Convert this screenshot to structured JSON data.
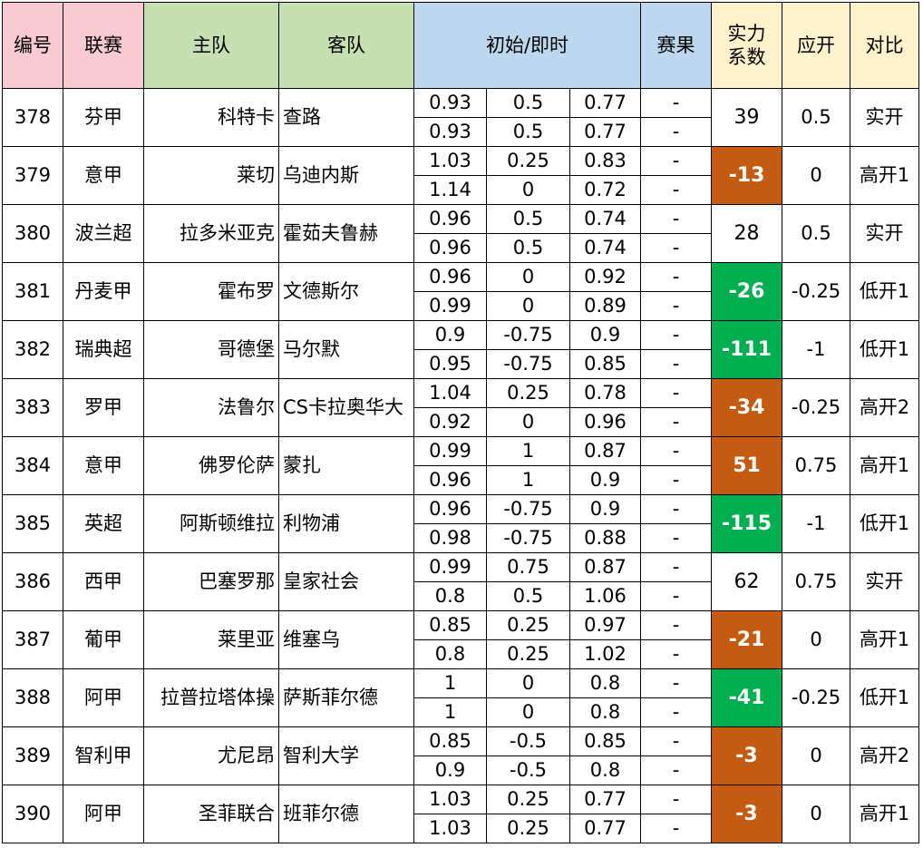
{
  "headers": {
    "id": "编号",
    "league": "联赛",
    "home": "主队",
    "away": "客队",
    "odds": "初始/即时",
    "result": "赛果",
    "power_line1": "实力",
    "power_line2": "系数",
    "expected": "应开",
    "compare": "对比"
  },
  "colors": {
    "header_pink": "#f8cad4",
    "header_green": "#c6e0b4",
    "header_blue": "#bdd7ee",
    "header_yellow": "#fff2cc",
    "highlight_orange": "#c55a11",
    "highlight_green": "#00b050"
  },
  "rows": [
    {
      "id": "378",
      "league": "芬甲",
      "home": "科特卡",
      "away": "查路",
      "initial": [
        "0.93",
        "0.5",
        "0.77"
      ],
      "live": [
        "0.93",
        "0.5",
        "0.77"
      ],
      "result1": "-",
      "result2": "-",
      "coef": "39",
      "coef_style": "none",
      "expected": "0.5",
      "compare": "实开"
    },
    {
      "id": "379",
      "league": "意甲",
      "home": "莱切",
      "away": "乌迪内斯",
      "initial": [
        "1.03",
        "0.25",
        "0.83"
      ],
      "live": [
        "1.14",
        "0",
        "0.72"
      ],
      "result1": "-",
      "result2": "-",
      "coef": "-13",
      "coef_style": "orange",
      "expected": "0",
      "compare": "高开1"
    },
    {
      "id": "380",
      "league": "波兰超",
      "home": "拉多米亚克",
      "away": "霍茹夫鲁赫",
      "initial": [
        "0.96",
        "0.5",
        "0.74"
      ],
      "live": [
        "0.96",
        "0.5",
        "0.74"
      ],
      "result1": "-",
      "result2": "-",
      "coef": "28",
      "coef_style": "none",
      "expected": "0.5",
      "compare": "实开"
    },
    {
      "id": "381",
      "league": "丹麦甲",
      "home": "霍布罗",
      "away": "文德斯尔",
      "initial": [
        "0.96",
        "0",
        "0.92"
      ],
      "live": [
        "0.99",
        "0",
        "0.89"
      ],
      "result1": "-",
      "result2": "-",
      "coef": "-26",
      "coef_style": "green",
      "expected": "-0.25",
      "compare": "低开1"
    },
    {
      "id": "382",
      "league": "瑞典超",
      "home": "哥德堡",
      "away": "马尔默",
      "initial": [
        "0.9",
        "-0.75",
        "0.9"
      ],
      "live": [
        "0.95",
        "-0.75",
        "0.85"
      ],
      "result1": "-",
      "result2": "-",
      "coef": "-111",
      "coef_style": "green",
      "expected": "-1",
      "compare": "低开1"
    },
    {
      "id": "383",
      "league": "罗甲",
      "home": "法鲁尔",
      "away": "CS卡拉奥华大",
      "initial": [
        "1.04",
        "0.25",
        "0.78"
      ],
      "live": [
        "0.92",
        "0",
        "0.96"
      ],
      "result1": "-",
      "result2": "-",
      "coef": "-34",
      "coef_style": "orange",
      "expected": "-0.25",
      "compare": "高开2"
    },
    {
      "id": "384",
      "league": "意甲",
      "home": "佛罗伦萨",
      "away": "蒙扎",
      "initial": [
        "0.99",
        "1",
        "0.87"
      ],
      "live": [
        "0.96",
        "1",
        "0.9"
      ],
      "result1": "-",
      "result2": "-",
      "coef": "51",
      "coef_style": "orange",
      "expected": "0.75",
      "compare": "高开1"
    },
    {
      "id": "385",
      "league": "英超",
      "home": "阿斯顿维拉",
      "away": "利物浦",
      "initial": [
        "0.96",
        "-0.75",
        "0.9"
      ],
      "live": [
        "0.98",
        "-0.75",
        "0.88"
      ],
      "result1": "-",
      "result2": "-",
      "coef": "-115",
      "coef_style": "green",
      "expected": "-1",
      "compare": "低开1"
    },
    {
      "id": "386",
      "league": "西甲",
      "home": "巴塞罗那",
      "away": "皇家社会",
      "initial": [
        "0.99",
        "0.75",
        "0.87"
      ],
      "live": [
        "0.8",
        "0.5",
        "1.06"
      ],
      "result1": "-",
      "result2": "-",
      "coef": "62",
      "coef_style": "none",
      "expected": "0.75",
      "compare": "实开"
    },
    {
      "id": "387",
      "league": "葡甲",
      "home": "莱里亚",
      "away": "维塞乌",
      "initial": [
        "0.85",
        "0.25",
        "0.97"
      ],
      "live": [
        "0.8",
        "0.25",
        "1.02"
      ],
      "result1": "-",
      "result2": "-",
      "coef": "-21",
      "coef_style": "orange",
      "expected": "0",
      "compare": "高开1"
    },
    {
      "id": "388",
      "league": "阿甲",
      "home": "拉普拉塔体操",
      "away": "萨斯菲尔德",
      "initial": [
        "1",
        "0",
        "0.8"
      ],
      "live": [
        "1",
        "0",
        "0.8"
      ],
      "result1": "-",
      "result2": "-",
      "coef": "-41",
      "coef_style": "green",
      "expected": "-0.25",
      "compare": "低开1"
    },
    {
      "id": "389",
      "league": "智利甲",
      "home": "尤尼昂",
      "away": "智利大学",
      "initial": [
        "0.85",
        "-0.5",
        "0.85"
      ],
      "live": [
        "0.9",
        "-0.5",
        "0.8"
      ],
      "result1": "-",
      "result2": "-",
      "coef": "-3",
      "coef_style": "orange",
      "expected": "0",
      "compare": "高开2"
    },
    {
      "id": "390",
      "league": "阿甲",
      "home": "圣菲联合",
      "away": "班菲尔德",
      "initial": [
        "1.03",
        "0.25",
        "0.77"
      ],
      "live": [
        "1.03",
        "0.25",
        "0.77"
      ],
      "result1": "-",
      "result2": "-",
      "coef": "-3",
      "coef_style": "orange",
      "expected": "0",
      "compare": "高开1"
    }
  ]
}
